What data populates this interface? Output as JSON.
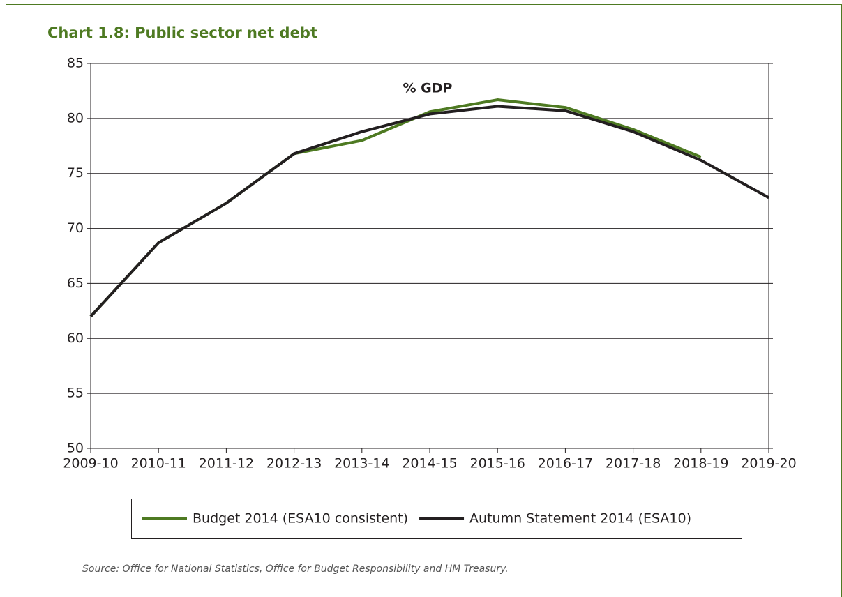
{
  "chart_data": {
    "type": "line",
    "title": "Chart 1.8: Public sector net debt",
    "annotation": "% GDP",
    "source": "Source: Office for National Statistics, Office for Budget Responsibility and HM Treasury.",
    "categories": [
      "2009-10",
      "2010-11",
      "2011-12",
      "2012-13",
      "2013-14",
      "2014-15",
      "2015-16",
      "2016-17",
      "2017-18",
      "2018-19",
      "2019-20"
    ],
    "series": [
      {
        "name": "Budget 2014 (ESA10 consistent)",
        "color": "#4e7a22",
        "values": [
          62,
          68.7,
          72.3,
          76.8,
          78.0,
          80.6,
          81.7,
          81.0,
          79.0,
          76.5,
          null
        ]
      },
      {
        "name": "Autumn Statement 2014 (ESA10)",
        "color": "#231f20",
        "values": [
          62,
          68.7,
          72.3,
          76.8,
          78.8,
          80.4,
          81.1,
          80.7,
          78.8,
          76.2,
          72.8
        ]
      }
    ],
    "ylim": [
      50,
      85
    ],
    "yticks": [
      50,
      55,
      60,
      65,
      70,
      75,
      80,
      85
    ],
    "grid": true,
    "legend": "bottom"
  }
}
